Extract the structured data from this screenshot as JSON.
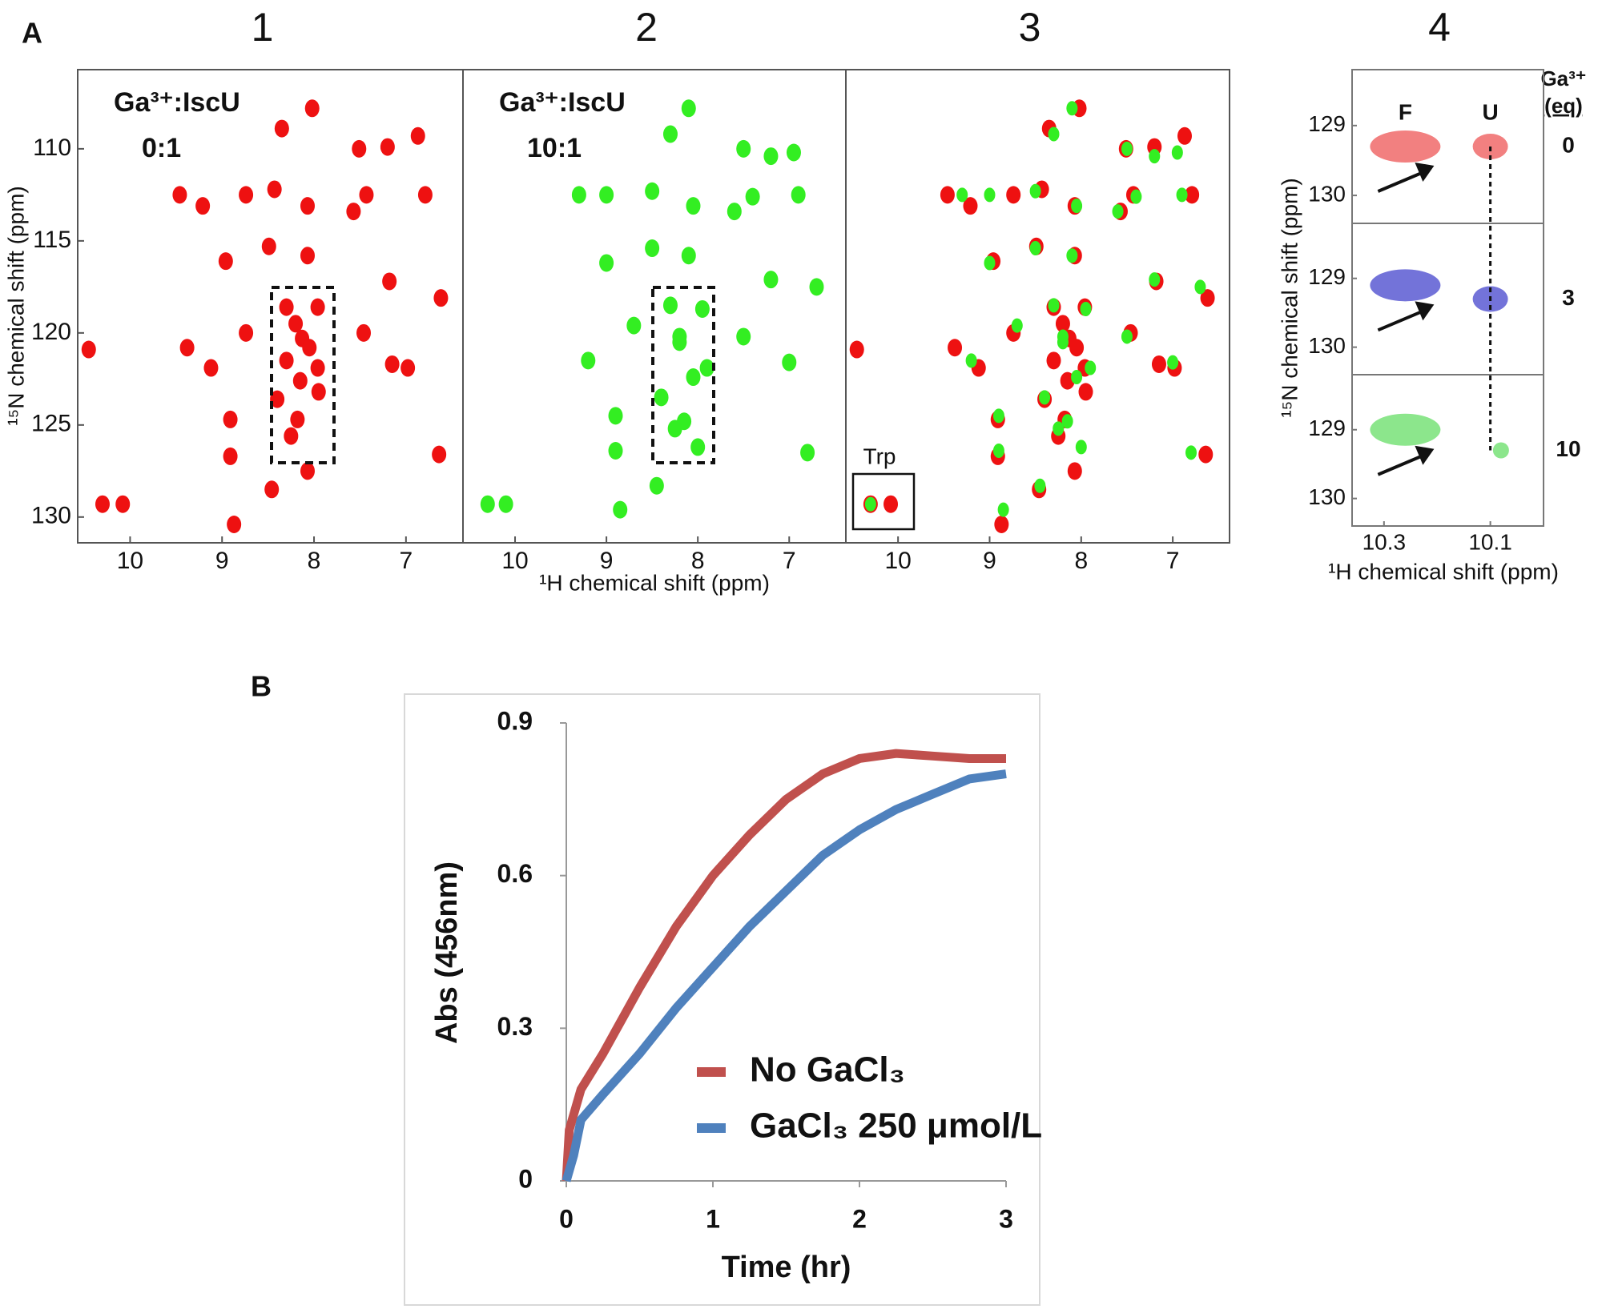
{
  "chart_data": [
    {
      "type": "scatter",
      "panel_label": "A",
      "title": "1",
      "annotation": [
        "Ga³⁺:IscU",
        "0:1"
      ],
      "ylabel": "¹⁵N chemical shift (ppm)",
      "xlim": [
        10.57,
        6.38
      ],
      "xticks": [
        10,
        9,
        8,
        7
      ],
      "ylim": [
        105.7,
        131.4
      ],
      "yticks": [
        110,
        115,
        120,
        125,
        130
      ],
      "series": [
        {
          "color": "#ee1111",
          "x": [
            8.02,
            8.35,
            7.51,
            7.2,
            6.87,
            9.46,
            9.21,
            8.74,
            8.43,
            8.07,
            7.57,
            7.43,
            6.79,
            8.96,
            8.49,
            8.07,
            7.18,
            6.62,
            8.74,
            8.13,
            8.3,
            7.96,
            9.38,
            9.12,
            7.46,
            7.15,
            6.98,
            8.91,
            8.18,
            8.91,
            8.46,
            8.07,
            10.45,
            10.3,
            10.08,
            8.87,
            6.64,
            8.4,
            7.96,
            8.2,
            8.05,
            8.3,
            8.15,
            7.95,
            8.25
          ],
          "y": [
            107.8,
            108.9,
            110,
            109.9,
            109.3,
            112.5,
            113.1,
            112.5,
            112.2,
            113.1,
            113.4,
            112.5,
            112.5,
            116.1,
            115.3,
            115.8,
            117.2,
            118.1,
            120,
            120.3,
            118.6,
            121.9,
            120.8,
            121.9,
            120,
            121.7,
            121.9,
            124.7,
            124.7,
            126.7,
            128.5,
            127.5,
            120.9,
            129.3,
            129.3,
            130.4,
            126.6,
            123.6,
            118.6,
            119.5,
            120.8,
            121.5,
            122.6,
            123.2,
            125.6
          ]
        }
      ]
    },
    {
      "type": "scatter",
      "title": "2",
      "annotation": [
        "Ga³⁺:IscU",
        "10:1"
      ],
      "xlabel": "¹H chemical shift (ppm)",
      "xlim": [
        10.57,
        6.38
      ],
      "xticks": [
        10,
        9,
        8,
        7
      ],
      "ylim": [
        105.7,
        131.4
      ],
      "series": [
        {
          "color": "#33ee22",
          "x": [
            8.1,
            8.3,
            7.5,
            7.2,
            6.95,
            9.3,
            9.0,
            8.5,
            8.05,
            7.6,
            7.4,
            6.9,
            9.0,
            8.5,
            8.1,
            7.2,
            6.7,
            8.7,
            8.2,
            8.3,
            7.9,
            9.2,
            7.5,
            7.0,
            8.9,
            8.15,
            8.9,
            8.45,
            8.0,
            10.3,
            10.1,
            8.85,
            6.8,
            8.4,
            7.95,
            8.2,
            8.05,
            8.25
          ],
          "y": [
            107.8,
            109.2,
            110,
            110.4,
            110.2,
            112.5,
            112.5,
            112.3,
            113.1,
            113.4,
            112.6,
            112.5,
            116.2,
            115.4,
            115.8,
            117.1,
            117.5,
            119.6,
            120.2,
            118.5,
            121.9,
            121.5,
            120.2,
            121.6,
            124.5,
            124.8,
            126.4,
            128.3,
            126.2,
            129.3,
            129.3,
            129.6,
            126.5,
            123.5,
            118.7,
            120.5,
            122.4,
            125.2
          ]
        }
      ]
    },
    {
      "type": "scatter",
      "title": "3",
      "annotation": [
        "Trp"
      ],
      "xlim": [
        10.57,
        6.38
      ],
      "xticks": [
        10,
        9,
        8,
        7
      ],
      "ylim": [
        105.7,
        131.4
      ],
      "series": [
        {
          "color": "#ee1111",
          "x": [
            8.02,
            8.35,
            7.51,
            7.2,
            6.87,
            9.46,
            9.21,
            8.74,
            8.43,
            8.07,
            7.57,
            7.43,
            6.79,
            8.96,
            8.49,
            8.07,
            7.18,
            6.62,
            8.74,
            8.13,
            8.3,
            7.96,
            9.38,
            9.12,
            7.46,
            7.15,
            6.98,
            8.91,
            8.18,
            8.91,
            8.46,
            8.07,
            10.45,
            10.3,
            10.08,
            8.87,
            6.64,
            8.4,
            7.96,
            8.2,
            8.05,
            8.3,
            8.15,
            7.95,
            8.25
          ],
          "y": [
            107.8,
            108.9,
            110,
            109.9,
            109.3,
            112.5,
            113.1,
            112.5,
            112.2,
            113.1,
            113.4,
            112.5,
            112.5,
            116.1,
            115.3,
            115.8,
            117.2,
            118.1,
            120,
            120.3,
            118.6,
            121.9,
            120.8,
            121.9,
            120,
            121.7,
            121.9,
            124.7,
            124.7,
            126.7,
            128.5,
            127.5,
            120.9,
            129.3,
            129.3,
            130.4,
            126.6,
            123.6,
            118.6,
            119.5,
            120.8,
            121.5,
            122.6,
            123.2,
            125.6
          ]
        },
        {
          "color": "#33ee22",
          "x": [
            8.1,
            8.3,
            7.5,
            7.2,
            6.95,
            9.3,
            9.0,
            8.5,
            8.05,
            7.6,
            7.4,
            6.9,
            9.0,
            8.5,
            8.1,
            7.2,
            6.7,
            8.7,
            8.2,
            8.3,
            7.9,
            9.2,
            7.5,
            7.0,
            8.9,
            8.15,
            8.9,
            8.45,
            8.0,
            10.3,
            8.85,
            6.8,
            8.4,
            7.95,
            8.2,
            8.05,
            8.25
          ],
          "y": [
            107.8,
            109.2,
            110,
            110.4,
            110.2,
            112.5,
            112.5,
            112.3,
            113.1,
            113.4,
            112.6,
            112.5,
            116.2,
            115.4,
            115.8,
            117.1,
            117.5,
            119.6,
            120.2,
            118.5,
            121.9,
            121.5,
            120.2,
            121.6,
            124.5,
            124.8,
            126.4,
            128.3,
            126.2,
            129.3,
            129.6,
            126.5,
            123.5,
            118.7,
            120.5,
            122.4,
            125.2
          ]
        }
      ]
    },
    {
      "type": "stacked-scatter",
      "title": "4",
      "xlabel": "¹H chemical shift (ppm)",
      "ylabel": "¹⁵N chemical shift (ppm)",
      "eq_header": [
        "Ga³⁺",
        "(eq)"
      ],
      "peak_labels": [
        "F",
        "U"
      ],
      "xlim": [
        10.36,
        10.0
      ],
      "xticks": [
        10.3,
        10.1
      ],
      "panels": [
        {
          "ga_eq": 0,
          "color": "#ee5555",
          "ylim": [
            128.2,
            130.4
          ],
          "yticks": [
            129,
            130
          ],
          "x": [
            10.26,
            10.1
          ],
          "y": [
            129.3,
            129.3
          ]
        },
        {
          "ga_eq": 3,
          "color": "#4444cc",
          "ylim": [
            128.2,
            130.4
          ],
          "yticks": [
            129,
            130
          ],
          "x": [
            10.26,
            10.1
          ],
          "y": [
            129.1,
            129.3
          ]
        },
        {
          "ga_eq": 10,
          "color": "#66dd66",
          "ylim": [
            128.2,
            130.4
          ],
          "yticks": [
            129,
            130
          ],
          "x": [
            10.26,
            10.08
          ],
          "y": [
            129.0,
            129.3
          ]
        }
      ]
    },
    {
      "type": "line",
      "panel_label": "B",
      "xlabel": "Time (hr)",
      "ylabel": "Abs (456nm)",
      "xlim": [
        0,
        3
      ],
      "xticks": [
        0,
        1,
        2,
        3
      ],
      "ylim": [
        0,
        0.9
      ],
      "yticks": [
        0,
        0.3,
        0.6,
        0.9
      ],
      "series": [
        {
          "name": "No GaCl₃",
          "color": "#c0504d",
          "x": [
            0,
            0.02,
            0.1,
            0.25,
            0.5,
            0.75,
            1,
            1.25,
            1.5,
            1.75,
            2,
            2.25,
            2.5,
            2.75,
            3
          ],
          "values": [
            0,
            0.1,
            0.18,
            0.25,
            0.38,
            0.5,
            0.6,
            0.68,
            0.75,
            0.8,
            0.83,
            0.84,
            0.835,
            0.83,
            0.83
          ]
        },
        {
          "name": "GaCl₃ 250 μmol/L",
          "color": "#4f81bd",
          "x": [
            0,
            0.05,
            0.1,
            0.25,
            0.5,
            0.75,
            1,
            1.25,
            1.5,
            1.75,
            2,
            2.25,
            2.5,
            2.75,
            3
          ],
          "values": [
            0,
            0.05,
            0.12,
            0.17,
            0.25,
            0.34,
            0.42,
            0.5,
            0.57,
            0.64,
            0.69,
            0.73,
            0.76,
            0.79,
            0.8
          ]
        }
      ]
    }
  ]
}
